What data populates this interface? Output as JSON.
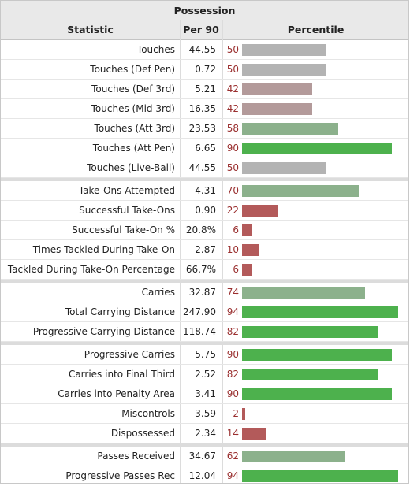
{
  "title": "Possession",
  "columns": {
    "statistic": "Statistic",
    "per90": "Per 90",
    "percentile": "Percentile"
  },
  "colors": {
    "high": "#4db14d",
    "mid_high": "#8cb18c",
    "mid": "#b3b3b3",
    "mid_low": "#b39a9a",
    "low": "#b35a5a"
  },
  "groups": [
    [
      {
        "stat": "Touches",
        "per90": "44.55",
        "percentile": 50
      },
      {
        "stat": "Touches (Def Pen)",
        "per90": "0.72",
        "percentile": 50
      },
      {
        "stat": "Touches (Def 3rd)",
        "per90": "5.21",
        "percentile": 42
      },
      {
        "stat": "Touches (Mid 3rd)",
        "per90": "16.35",
        "percentile": 42
      },
      {
        "stat": "Touches (Att 3rd)",
        "per90": "23.53",
        "percentile": 58
      },
      {
        "stat": "Touches (Att Pen)",
        "per90": "6.65",
        "percentile": 90
      },
      {
        "stat": "Touches (Live-Ball)",
        "per90": "44.55",
        "percentile": 50
      }
    ],
    [
      {
        "stat": "Take-Ons Attempted",
        "per90": "4.31",
        "percentile": 70
      },
      {
        "stat": "Successful Take-Ons",
        "per90": "0.90",
        "percentile": 22
      },
      {
        "stat": "Successful Take-On %",
        "per90": "20.8%",
        "percentile": 6
      },
      {
        "stat": "Times Tackled During Take-On",
        "per90": "2.87",
        "percentile": 10
      },
      {
        "stat": "Tackled During Take-On Percentage",
        "per90": "66.7%",
        "percentile": 6
      }
    ],
    [
      {
        "stat": "Carries",
        "per90": "32.87",
        "percentile": 74
      },
      {
        "stat": "Total Carrying Distance",
        "per90": "247.90",
        "percentile": 94
      },
      {
        "stat": "Progressive Carrying Distance",
        "per90": "118.74",
        "percentile": 82
      }
    ],
    [
      {
        "stat": "Progressive Carries",
        "per90": "5.75",
        "percentile": 90
      },
      {
        "stat": "Carries into Final Third",
        "per90": "2.52",
        "percentile": 82
      },
      {
        "stat": "Carries into Penalty Area",
        "per90": "3.41",
        "percentile": 90
      },
      {
        "stat": "Miscontrols",
        "per90": "3.59",
        "percentile": 2
      },
      {
        "stat": "Dispossessed",
        "per90": "2.34",
        "percentile": 14
      }
    ],
    [
      {
        "stat": "Passes Received",
        "per90": "34.67",
        "percentile": 62
      },
      {
        "stat": "Progressive Passes Rec",
        "per90": "12.04",
        "percentile": 94
      }
    ]
  ]
}
